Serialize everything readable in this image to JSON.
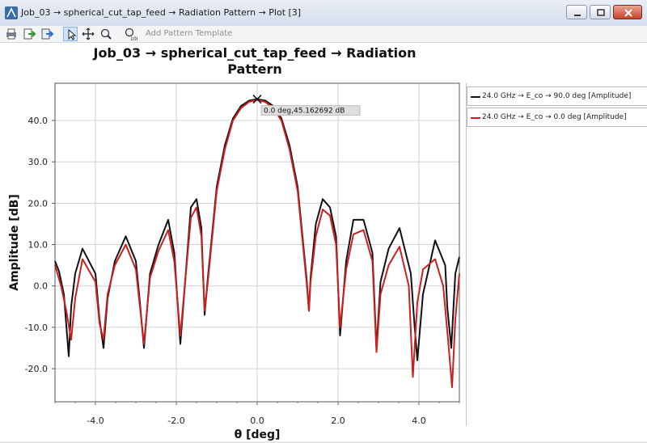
{
  "window": {
    "title": "Job_03 → spherical_cut_tap_feed → Radiation Pattern → Plot [3]"
  },
  "toolbar": {
    "add_pattern_template_label": "Add Pattern Template",
    "icons": [
      "print-icon",
      "export-icon",
      "export-image-icon",
      "pointer-icon",
      "pan-icon",
      "zoom-icon",
      "marker-100-icon"
    ]
  },
  "chart": {
    "title_line1": "Job_03 → spherical_cut_tap_feed → Radiation",
    "title_line2": "Pattern",
    "marker_label": "0.0 deg,45.162692 dB"
  },
  "legend": {
    "items": [
      {
        "label": "24.0 GHz → E_co → 90.0 deg [Amplitude]",
        "color": "#111111"
      },
      {
        "label": "24.0 GHz → E_co → 0.0 deg [Amplitude]",
        "color": "#cc1f1f"
      }
    ]
  },
  "chart_data": {
    "type": "line",
    "title": "Job_03 → spherical_cut_tap_feed → Radiation Pattern",
    "xlabel": "θ [deg]",
    "ylabel": "Amplitude [dB]",
    "xlim": [
      -5.0,
      5.0
    ],
    "ylim": [
      -28.0,
      49.0
    ],
    "xticks": [
      -4.0,
      -2.0,
      0.0,
      2.0,
      4.0
    ],
    "xtick_labels": [
      "-4.0",
      "-2.0",
      "0.0",
      "2.0",
      "4.0"
    ],
    "yticks": [
      -20.0,
      -10.0,
      0.0,
      10.0,
      20.0,
      30.0,
      40.0
    ],
    "ytick_labels": [
      "-20.0",
      "-10.0",
      "0.0",
      "10.0",
      "20.0",
      "30.0",
      "40.0"
    ],
    "grid": true,
    "legend_position": "right",
    "marker": {
      "x": 0.0,
      "y": 45.162692
    },
    "series": [
      {
        "name": "24.0 GHz → E_co → 90.0 deg [Amplitude]",
        "color": "#111111",
        "x": [
          -5.0,
          -4.9,
          -4.78,
          -4.66,
          -4.6,
          -4.5,
          -4.32,
          -4.0,
          -3.9,
          -3.8,
          -3.7,
          -3.52,
          -3.25,
          -3.0,
          -2.9,
          -2.8,
          -2.65,
          -2.44,
          -2.2,
          -2.05,
          -1.9,
          -1.64,
          -1.5,
          -1.38,
          -1.3,
          -1.22,
          -1.0,
          -0.8,
          -0.6,
          -0.4,
          -0.2,
          0.0,
          0.2,
          0.4,
          0.6,
          0.8,
          1.0,
          1.22,
          1.28,
          1.32,
          1.45,
          1.62,
          1.8,
          1.95,
          2.05,
          2.2,
          2.38,
          2.63,
          2.85,
          2.95,
          3.05,
          3.25,
          3.52,
          3.8,
          3.88,
          3.96,
          4.1,
          4.4,
          4.65,
          4.7,
          4.8,
          4.9,
          5.0
        ],
        "y": [
          6.0,
          3.5,
          -2.0,
          -17.0,
          -5.0,
          3.0,
          9.0,
          3.0,
          -8.0,
          -15.0,
          -3.0,
          6.0,
          12.0,
          6.0,
          -4.0,
          -15.0,
          3.0,
          10.0,
          16.0,
          8.0,
          -14.0,
          19.0,
          21.0,
          14.0,
          -7.0,
          2.0,
          24.0,
          34.0,
          40.5,
          43.5,
          44.8,
          45.16,
          44.8,
          43.5,
          40.5,
          34.0,
          24.0,
          2.0,
          -6.0,
          2.0,
          15.0,
          21.0,
          19.0,
          12.0,
          -12.0,
          6.0,
          16.0,
          16.0,
          8.0,
          -15.0,
          1.0,
          9.0,
          14.0,
          3.0,
          -8.0,
          -18.0,
          -2.0,
          11.0,
          5.0,
          -5.0,
          -15.0,
          3.0,
          7.0
        ]
      },
      {
        "name": "24.0 GHz → E_co → 0.0 deg [Amplitude]",
        "color": "#cc1f1f",
        "x": [
          -5.0,
          -4.85,
          -4.72,
          -4.6,
          -4.5,
          -4.32,
          -4.0,
          -3.9,
          -3.8,
          -3.7,
          -3.52,
          -3.25,
          -3.0,
          -2.9,
          -2.8,
          -2.65,
          -2.44,
          -2.2,
          -2.05,
          -1.9,
          -1.64,
          -1.5,
          -1.38,
          -1.3,
          -1.22,
          -1.0,
          -0.8,
          -0.6,
          -0.4,
          -0.2,
          0.0,
          0.2,
          0.4,
          0.6,
          0.8,
          1.0,
          1.22,
          1.28,
          1.32,
          1.45,
          1.62,
          1.8,
          1.95,
          2.05,
          2.2,
          2.38,
          2.63,
          2.85,
          2.95,
          3.05,
          3.25,
          3.52,
          3.75,
          3.85,
          3.96,
          4.1,
          4.4,
          4.6,
          4.72,
          4.82,
          4.9,
          5.0
        ],
        "y": [
          5.0,
          0.0,
          -6.0,
          -13.0,
          -3.0,
          6.5,
          1.0,
          -9.0,
          -13.0,
          -2.0,
          5.0,
          10.0,
          4.0,
          -5.0,
          -14.0,
          2.0,
          8.5,
          13.5,
          6.0,
          -12.0,
          16.5,
          19.0,
          12.0,
          -6.0,
          1.0,
          23.0,
          33.0,
          40.0,
          43.0,
          44.5,
          45.0,
          44.5,
          43.0,
          40.0,
          33.0,
          23.0,
          1.0,
          -6.0,
          1.0,
          12.0,
          18.5,
          17.0,
          10.0,
          -10.0,
          4.0,
          12.5,
          13.5,
          6.0,
          -16.0,
          -2.0,
          5.0,
          9.5,
          0.0,
          -22.0,
          -4.0,
          4.0,
          6.5,
          0.0,
          -13.0,
          -24.5,
          -8.0,
          3.0
        ]
      }
    ]
  }
}
